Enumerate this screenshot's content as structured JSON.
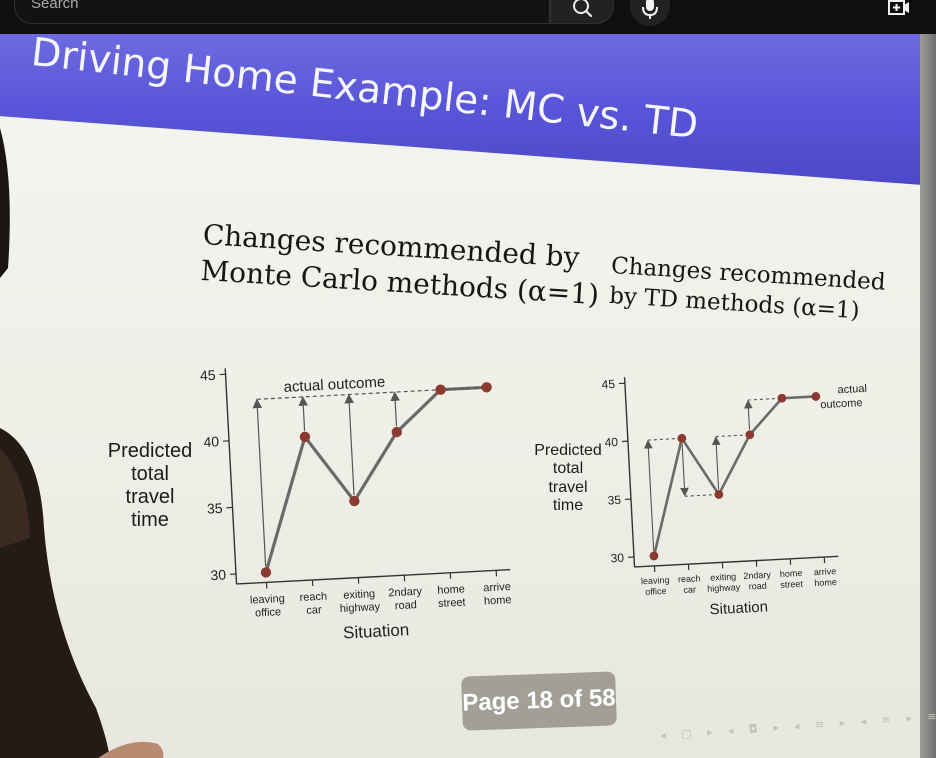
{
  "search": {
    "placeholder": "Search"
  },
  "icons": {
    "search": "search-icon",
    "mic": "mic-icon",
    "create": "create-video-icon"
  },
  "slide": {
    "title": "Driving Home Example: MC vs. TD",
    "mc_caption": [
      "Changes recommended by",
      "Monte Carlo methods (α=1)"
    ],
    "td_caption": [
      "Changes recommended",
      "by TD methods (α=1)"
    ],
    "page": "Page 18 of 58",
    "colors": {
      "banner": "#5a56d9",
      "slide_bg": "#f0f0e9"
    }
  },
  "chart_data": [
    {
      "type": "line",
      "ylabel": [
        "Predicted",
        "total",
        "travel",
        "time"
      ],
      "xlabel": "Situation",
      "categories": [
        [
          "leaving",
          "office"
        ],
        [
          "reach",
          "car"
        ],
        [
          "exiting",
          "highway"
        ],
        [
          "2ndary",
          "road"
        ],
        [
          "home",
          "street"
        ],
        [
          "arrive",
          "home"
        ]
      ],
      "values": [
        30,
        40,
        35,
        40,
        43,
        43
      ],
      "ylim": [
        30,
        45
      ],
      "yticks": [
        30,
        35,
        40,
        45
      ],
      "annotation": "actual outcome",
      "actual_outcome": 43
    },
    {
      "type": "line",
      "ylabel": [
        "Predicted",
        "total",
        "travel",
        "time"
      ],
      "xlabel": "Situation",
      "categories": [
        [
          "leaving",
          "office"
        ],
        [
          "reach",
          "car"
        ],
        [
          "exiting",
          "highway"
        ],
        [
          "2ndary",
          "road"
        ],
        [
          "home",
          "street"
        ],
        [
          "arrive",
          "home"
        ]
      ],
      "values": [
        30,
        40,
        35,
        40,
        43,
        43
      ],
      "ylim": [
        30,
        45
      ],
      "yticks": [
        30,
        35,
        40,
        45
      ],
      "annotation": [
        "actual",
        "outcome"
      ]
    }
  ]
}
